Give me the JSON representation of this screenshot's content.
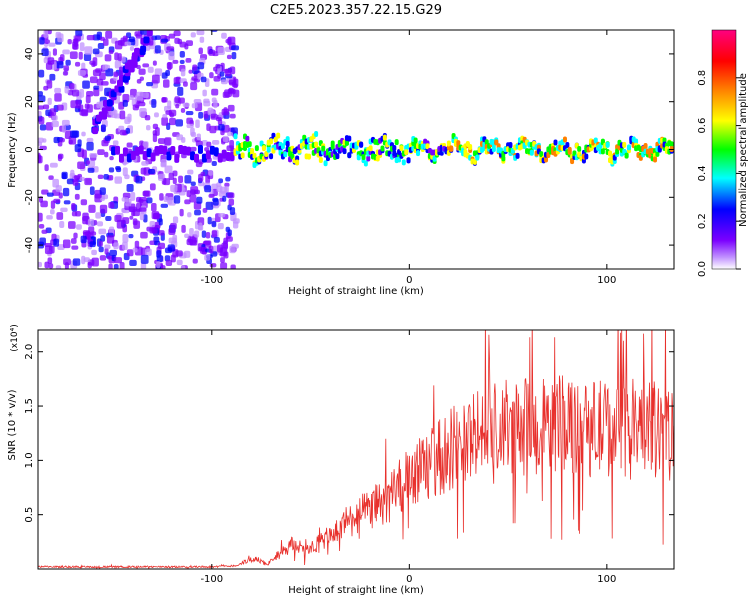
{
  "figure_title": "C2E5.2023.357.22.15.G29",
  "colors": {
    "snr_line": "#e8302c",
    "background": "#ffffff",
    "axis": "#000000"
  },
  "chart_data": [
    {
      "type": "heatmap",
      "xlabel": "Height of straight line (km)",
      "ylabel": "Frequency (Hz)",
      "xlim": [
        -188,
        134
      ],
      "ylim": [
        -50,
        50
      ],
      "xticks": [
        -100,
        0,
        100
      ],
      "yticks": [
        -40,
        -20,
        0,
        20,
        40
      ],
      "colorbar": {
        "label": "Normalized spectral amplitude",
        "range": [
          0.0,
          1.0
        ],
        "ticks": [
          "0.0",
          "0.2",
          "0.4",
          "0.6",
          "0.8"
        ],
        "colormap": [
          "#ffffff",
          "#7b00ff",
          "#0000ff",
          "#00ffff",
          "#00ff00",
          "#ffff00",
          "#ff8000",
          "#ff0000",
          "#ff0080"
        ]
      },
      "features": {
        "noise_region_x": [
          -188,
          -88
        ],
        "signal_track_freq_hz": 0,
        "signal_start_x": -88,
        "diagonal_streak": {
          "x": [
            -160,
            -132
          ],
          "freq": [
            8,
            48
          ]
        }
      }
    },
    {
      "type": "line",
      "xlabel": "Height of straight line (km)",
      "ylabel": "SNR (10 * v/v)",
      "y_multiplier": "(x10⁴)",
      "xlim": [
        -188,
        134
      ],
      "ylim": [
        0,
        2.2
      ],
      "xticks": [
        -100,
        0,
        100
      ],
      "yticks": [
        0.5,
        1.0,
        1.5,
        2.0
      ],
      "series": [
        {
          "x": [
            -188,
            -100,
            -88,
            -78,
            -72,
            -60,
            -50,
            -40,
            -30,
            -20,
            -10,
            0,
            10,
            20,
            30,
            40,
            50,
            60,
            70,
            80,
            90,
            100,
            110,
            120,
            130,
            134
          ],
          "values": [
            0.02,
            0.02,
            0.03,
            0.1,
            0.04,
            0.22,
            0.2,
            0.3,
            0.45,
            0.55,
            0.65,
            0.85,
            0.95,
            1.1,
            1.2,
            1.25,
            1.3,
            1.3,
            1.3,
            1.35,
            1.3,
            1.3,
            1.25,
            1.3,
            1.25,
            1.2
          ]
        }
      ]
    }
  ]
}
